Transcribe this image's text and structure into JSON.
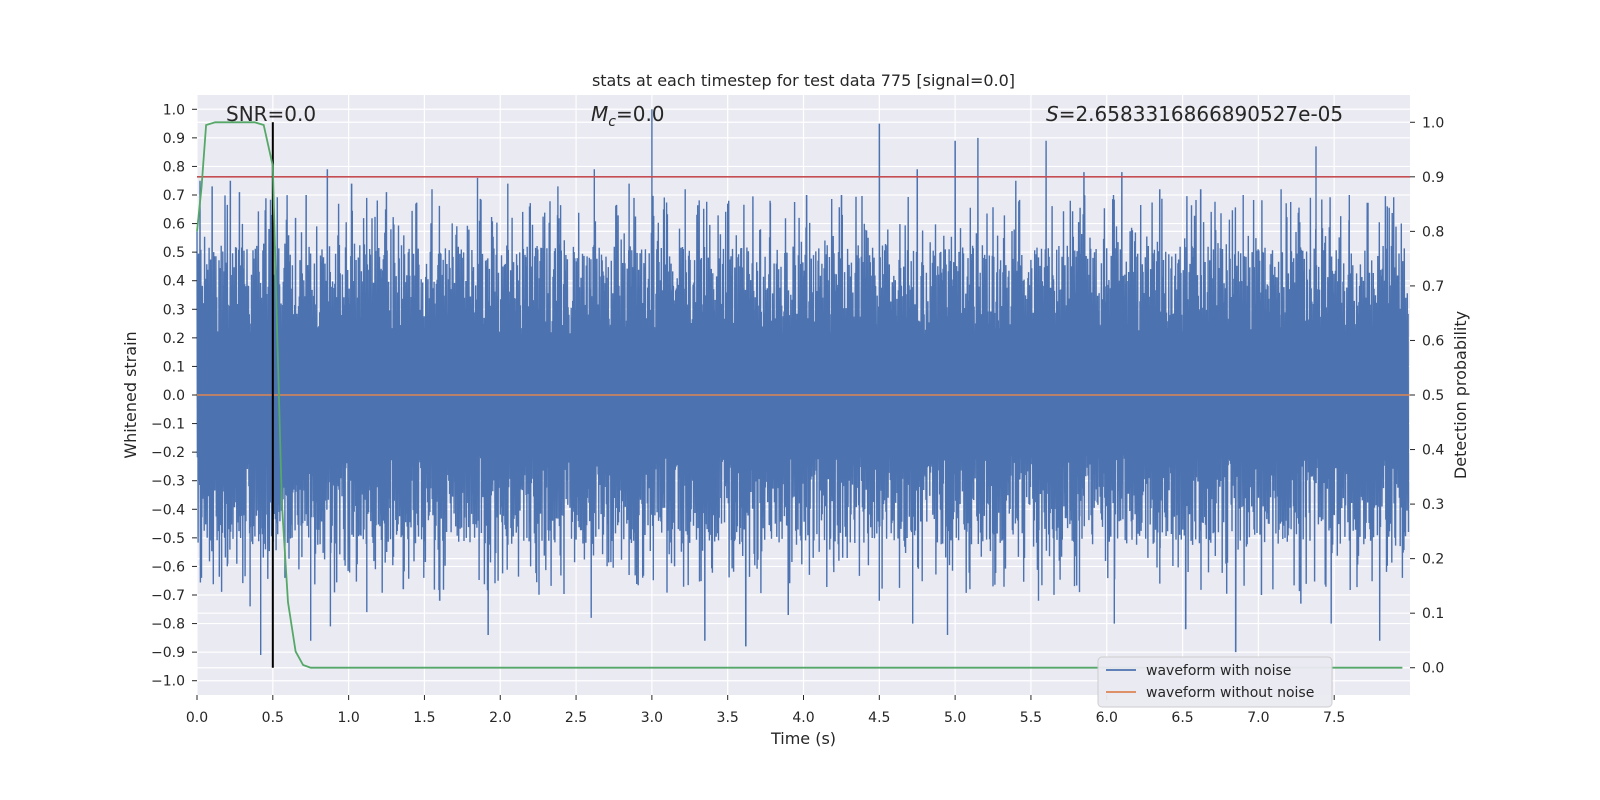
{
  "chart_data": {
    "type": "line",
    "title": "stats at each timestep for test data 775 [signal=0.0]",
    "xlabel": "Time (s)",
    "ylabel": "Whitened strain",
    "ylabel_right": "Detection probability",
    "xlim": [
      0.0,
      8.0
    ],
    "ylim": [
      -1.05,
      1.05
    ],
    "ylim_right": [
      -0.05,
      1.05
    ],
    "x_ticks": [
      "0.0",
      "0.5",
      "1.0",
      "1.5",
      "2.0",
      "2.5",
      "3.0",
      "3.5",
      "4.0",
      "4.5",
      "5.0",
      "5.5",
      "6.0",
      "6.5",
      "7.0",
      "7.5"
    ],
    "x_tick_values": [
      0.0,
      0.5,
      1.0,
      1.5,
      2.0,
      2.5,
      3.0,
      3.5,
      4.0,
      4.5,
      5.0,
      5.5,
      6.0,
      6.5,
      7.0,
      7.5
    ],
    "y_ticks": [
      "1.0",
      "0.9",
      "0.8",
      "0.7",
      "0.6",
      "0.5",
      "0.4",
      "0.3",
      "0.2",
      "0.1",
      "0.0",
      "−0.1",
      "−0.2",
      "−0.3",
      "−0.4",
      "−0.5",
      "−0.6",
      "−0.7",
      "−0.8",
      "−0.9",
      "−1.0"
    ],
    "y_tick_values": [
      1.0,
      0.9,
      0.8,
      0.7,
      0.6,
      0.5,
      0.4,
      0.3,
      0.2,
      0.1,
      0.0,
      -0.1,
      -0.2,
      -0.3,
      -0.4,
      -0.5,
      -0.6,
      -0.7,
      -0.8,
      -0.9,
      -1.0
    ],
    "y_ticks_right": [
      "1.0",
      "0.9",
      "0.8",
      "0.7",
      "0.6",
      "0.5",
      "0.4",
      "0.3",
      "0.2",
      "0.1",
      "0.0"
    ],
    "y_tick_values_right": [
      1.0,
      0.9,
      0.8,
      0.7,
      0.6,
      0.5,
      0.4,
      0.3,
      0.2,
      0.1,
      0.0
    ],
    "grid": true,
    "legend_position": "bottom-right",
    "annotations": {
      "snr": "SNR=0.0",
      "mc_symbol": "M",
      "mc_sub": "c",
      "mc_value": "=0.0",
      "s_symbol": "S",
      "s_value": "=2.6583316866890527e-05"
    },
    "series": [
      {
        "name": "waveform with noise",
        "color": "#4c72b0",
        "axis": "left",
        "note_envelope": "dense noise; peak magnitudes sampled",
        "spikes_pos": [
          [
            0.02,
            0.75
          ],
          [
            0.1,
            0.73
          ],
          [
            0.22,
            0.75
          ],
          [
            0.28,
            0.71
          ],
          [
            0.5,
            0.6
          ],
          [
            0.65,
            0.62
          ],
          [
            0.72,
            0.7
          ],
          [
            0.86,
            0.79
          ],
          [
            1.02,
            0.74
          ],
          [
            1.25,
            0.71
          ],
          [
            1.55,
            0.72
          ],
          [
            1.85,
            0.76
          ],
          [
            2.05,
            0.74
          ],
          [
            2.38,
            0.73
          ],
          [
            2.62,
            0.79
          ],
          [
            2.85,
            0.74
          ],
          [
            3.0,
            1.0
          ],
          [
            3.22,
            0.72
          ],
          [
            3.5,
            0.67
          ],
          [
            3.78,
            0.68
          ],
          [
            4.02,
            0.7
          ],
          [
            4.25,
            0.7
          ],
          [
            4.5,
            0.95
          ],
          [
            4.75,
            0.79
          ],
          [
            5.0,
            0.89
          ],
          [
            5.15,
            0.9
          ],
          [
            5.4,
            0.75
          ],
          [
            5.6,
            0.89
          ],
          [
            5.85,
            0.78
          ],
          [
            6.1,
            0.78
          ],
          [
            6.35,
            0.72
          ],
          [
            6.62,
            0.72
          ],
          [
            6.9,
            0.7
          ],
          [
            7.15,
            0.72
          ],
          [
            7.38,
            0.87
          ],
          [
            7.6,
            0.7
          ],
          [
            7.85,
            0.66
          ]
        ],
        "spikes_neg": [
          [
            0.03,
            -0.64
          ],
          [
            0.2,
            -0.6
          ],
          [
            0.35,
            -0.74
          ],
          [
            0.42,
            -0.91
          ],
          [
            0.58,
            -0.64
          ],
          [
            0.75,
            -0.86
          ],
          [
            0.88,
            -0.81
          ],
          [
            1.12,
            -0.76
          ],
          [
            1.36,
            -0.68
          ],
          [
            1.6,
            -0.72
          ],
          [
            1.92,
            -0.84
          ],
          [
            2.2,
            -0.6
          ],
          [
            2.6,
            -0.78
          ],
          [
            2.85,
            -0.63
          ],
          [
            3.15,
            -0.6
          ],
          [
            3.35,
            -0.86
          ],
          [
            3.62,
            -0.88
          ],
          [
            3.9,
            -0.77
          ],
          [
            4.2,
            -0.62
          ],
          [
            4.5,
            -0.72
          ],
          [
            4.72,
            -0.8
          ],
          [
            4.95,
            -0.84
          ],
          [
            5.25,
            -0.67
          ],
          [
            5.55,
            -0.72
          ],
          [
            5.82,
            -0.69
          ],
          [
            6.05,
            -0.8
          ],
          [
            6.35,
            -0.66
          ],
          [
            6.52,
            -0.82
          ],
          [
            6.85,
            -0.9
          ],
          [
            7.02,
            -0.7
          ],
          [
            7.28,
            -0.73
          ],
          [
            7.48,
            -0.8
          ],
          [
            7.8,
            -0.86
          ],
          [
            7.95,
            -0.64
          ]
        ],
        "core_amplitude": 0.35
      },
      {
        "name": "waveform without noise",
        "color": "#dd8452",
        "axis": "left",
        "x": [
          0.0,
          8.0
        ],
        "y": [
          0.0,
          0.0
        ]
      },
      {
        "name": "",
        "color": "#55a868",
        "axis": "right",
        "x": [
          0.0,
          0.03,
          0.06,
          0.12,
          0.2,
          0.3,
          0.38,
          0.44,
          0.5,
          0.53,
          0.56,
          0.6,
          0.65,
          0.7,
          0.75,
          0.8,
          1.0,
          2.0,
          4.0,
          6.0,
          7.95
        ],
        "y": [
          0.8,
          0.88,
          0.995,
          1.0,
          1.0,
          1.0,
          1.0,
          0.995,
          0.92,
          0.6,
          0.3,
          0.12,
          0.03,
          0.005,
          0.0,
          0.0,
          0.0,
          0.0,
          0.0,
          0.0,
          0.0
        ]
      }
    ],
    "hlines": [
      {
        "y": 0.9,
        "axis": "right",
        "color": "#c44e52"
      }
    ],
    "vlines": [
      {
        "x": 0.5,
        "y_from": 0.0,
        "y_to": 1.0,
        "axis": "right",
        "color": "#000000"
      }
    ],
    "colors": {
      "background": "#eaeaf2",
      "grid": "#ffffff",
      "text": "#262626"
    }
  }
}
